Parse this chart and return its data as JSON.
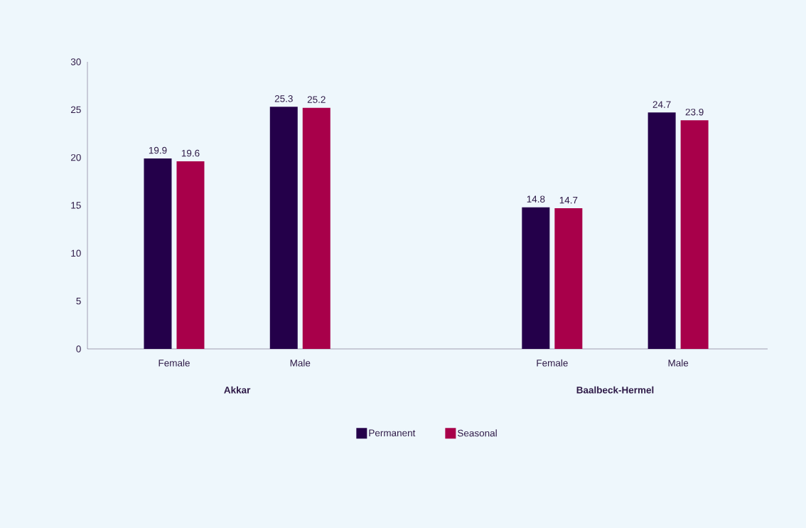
{
  "chart_data": {
    "type": "bar",
    "categories": [
      "Female",
      "Male",
      null,
      "Female",
      "Male"
    ],
    "series": [
      {
        "name": "Permanent",
        "color": "#24004a",
        "values": [
          19.9,
          25.3,
          null,
          14.8,
          24.7
        ]
      },
      {
        "name": "Seasonal",
        "color": "#a8004a",
        "values": [
          19.6,
          25.2,
          null,
          14.7,
          23.9
        ]
      }
    ],
    "annotations": [
      "Akkar",
      "Baalbeck-Hermel"
    ],
    "ylim": [
      0,
      30
    ],
    "yticks": [
      0,
      5,
      10,
      15,
      20,
      25,
      30
    ],
    "data_labels": true,
    "legend": "bottom",
    "grid": false
  }
}
